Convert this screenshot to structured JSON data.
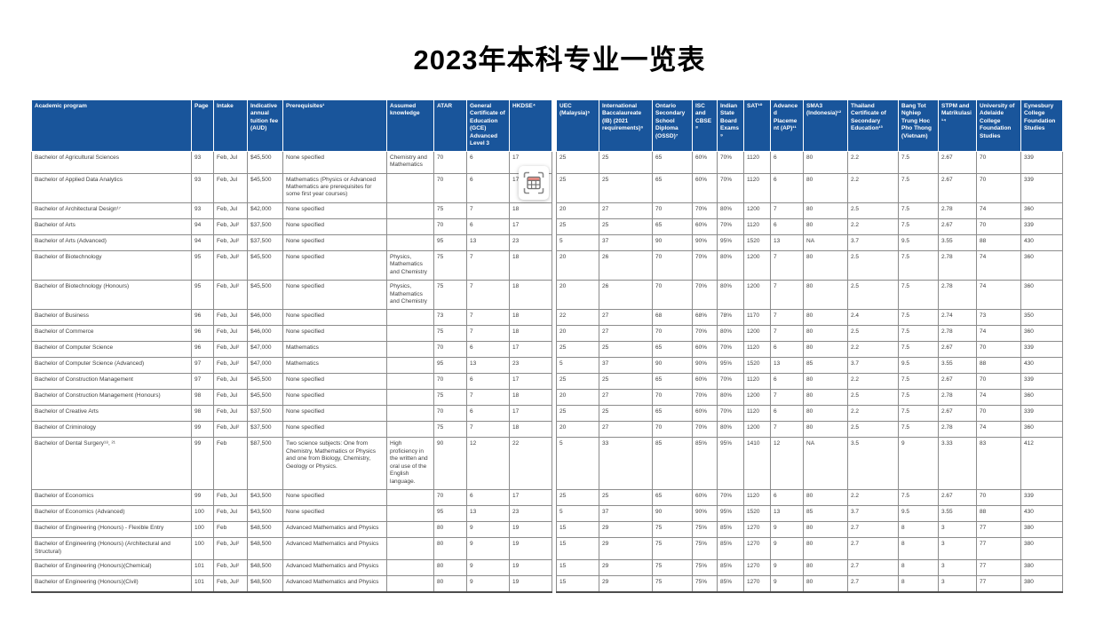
{
  "page_title": "2023年本科专业一览表",
  "colors": {
    "header_bg": "#19559B",
    "header_text": "#FFFFFF",
    "row_border": "#8C8C8C",
    "table_bottom_border": "#4D4D4D",
    "cell_text": "#3D3D3D",
    "capture_icon_accent": "#E2837B",
    "capture_icon_stroke": "#6E6E6E"
  },
  "capture_tool": {
    "label": "capture-table"
  },
  "table": {
    "gap_after_index": 8,
    "columns": [
      "Academic program",
      "Page",
      "Intake",
      "Indicative annual tuition fee (AUD)",
      "Prerequisites¹",
      "Assumed knowledge",
      "ATAR",
      "General Certificate of Education (GCE) Advan­ced Level 3",
      "HKDSE⁴",
      "UEC (Malaysia)⁵",
      "International Baccalaureate (IB) (2021 requirements)⁶",
      "Ontario Secondary School Diploma (OSSD)⁷",
      "ISC and CBSE⁸",
      "Indian State Board Exams⁹",
      "SAT¹⁰",
      "Advanced Placement (AP)¹¹",
      "SMA3 (Indonesia)¹²",
      "Thailand Certificate of Secondary Education¹³",
      "Bang Tot Nghiep Trung Hoc Pho Thong (Vietnam)",
      "STPM and Matrikulasi¹⁴",
      "University of Adelaide College Foundation Studies",
      "Eynesbury College Foundation Studies"
    ],
    "rows": [
      [
        "Bachelor of Agricultural Sciences",
        "93",
        "Feb, Jul",
        "$45,500",
        "None specified",
        "Chemistry and Mathematics",
        "70",
        "6",
        "17",
        "25",
        "25",
        "65",
        "60%",
        "70%",
        "1120",
        "6",
        "80",
        "2.2",
        "7.5",
        "2.67",
        "70",
        "339"
      ],
      [
        "Bachelor of Applied Data Analytics",
        "93",
        "Feb, Jul",
        "$45,500",
        "Mathematics (Physics or Advanced Mathematics are prerequisites for some first year courses)",
        "",
        "70",
        "6",
        "17",
        "25",
        "25",
        "65",
        "60%",
        "70%",
        "1120",
        "6",
        "80",
        "2.2",
        "7.5",
        "2.67",
        "70",
        "339"
      ],
      [
        "Bachelor of Architectural Design¹⁷",
        "93",
        "Feb, Jul",
        "$42,000",
        "None specified",
        "",
        "75",
        "7",
        "18",
        "20",
        "27",
        "70",
        "70%",
        "80%",
        "1200",
        "7",
        "80",
        "2.5",
        "7.5",
        "2.78",
        "74",
        "360"
      ],
      [
        "Bachelor of Arts",
        "94",
        "Feb, Jul²",
        "$37,500",
        "None specified",
        "",
        "70",
        "6",
        "17",
        "25",
        "25",
        "65",
        "60%",
        "70%",
        "1120",
        "6",
        "80",
        "2.2",
        "7.5",
        "2.67",
        "70",
        "339"
      ],
      [
        "Bachelor of Arts (Advanced)",
        "94",
        "Feb, Jul²",
        "$37,500",
        "None specified",
        "",
        "95",
        "13",
        "23",
        "5",
        "37",
        "90",
        "90%",
        "95%",
        "1520",
        "13",
        "NA",
        "3.7",
        "9.5",
        "3.55",
        "88",
        "430"
      ],
      [
        "Bachelor of Biotechnology",
        "95",
        "Feb, Jul²",
        "$45,500",
        "None specified",
        "Physics, Mathematics and Chemistry",
        "75",
        "7",
        "18",
        "20",
        "26",
        "70",
        "70%",
        "80%",
        "1200",
        "7",
        "80",
        "2.5",
        "7.5",
        "2.78",
        "74",
        "360"
      ],
      [
        "Bachelor of Biotechnology (Honours)",
        "95",
        "Feb, Jul²",
        "$45,500",
        "None specified",
        "Physics, Mathematics and Chemistry",
        "75",
        "7",
        "18",
        "20",
        "26",
        "70",
        "70%",
        "80%",
        "1200",
        "7",
        "80",
        "2.5",
        "7.5",
        "2.78",
        "74",
        "360"
      ],
      [
        "Bachelor of Business",
        "96",
        "Feb, Jul",
        "$46,000",
        "None specified",
        "",
        "73",
        "7",
        "18",
        "22",
        "27",
        "68",
        "68%",
        "78%",
        "1170",
        "7",
        "80",
        "2.4",
        "7.5",
        "2.74",
        "73",
        "350"
      ],
      [
        "Bachelor of Commerce",
        "96",
        "Feb, Jul",
        "$46,000",
        "None specified",
        "",
        "75",
        "7",
        "18",
        "20",
        "27",
        "70",
        "70%",
        "80%",
        "1200",
        "7",
        "80",
        "2.5",
        "7.5",
        "2.78",
        "74",
        "360"
      ],
      [
        "Bachelor of Computer Science",
        "96",
        "Feb, Jul²",
        "$47,000",
        "Mathematics",
        "",
        "70",
        "6",
        "17",
        "25",
        "25",
        "65",
        "60%",
        "70%",
        "1120",
        "6",
        "80",
        "2.2",
        "7.5",
        "2.67",
        "70",
        "339"
      ],
      [
        "Bachelor of Computer Science (Advanced)",
        "97",
        "Feb, Jul²",
        "$47,000",
        "Mathematics",
        "",
        "95",
        "13",
        "23",
        "5",
        "37",
        "90",
        "90%",
        "95%",
        "1520",
        "13",
        "85",
        "3.7",
        "9.5",
        "3.55",
        "88",
        "430"
      ],
      [
        "Bachelor of Construction Management",
        "97",
        "Feb, Jul",
        "$45,500",
        "None specified",
        "",
        "70",
        "6",
        "17",
        "25",
        "25",
        "65",
        "60%",
        "70%",
        "1120",
        "6",
        "80",
        "2.2",
        "7.5",
        "2.67",
        "70",
        "339"
      ],
      [
        "Bachelor of Construction Management (Honours)",
        "98",
        "Feb, Jul",
        "$45,500",
        "None specified",
        "",
        "75",
        "7",
        "18",
        "20",
        "27",
        "70",
        "70%",
        "80%",
        "1200",
        "7",
        "80",
        "2.5",
        "7.5",
        "2.78",
        "74",
        "360"
      ],
      [
        "Bachelor of Creative Arts",
        "98",
        "Feb, Jul",
        "$37,500",
        "None specified",
        "",
        "70",
        "6",
        "17",
        "25",
        "25",
        "65",
        "60%",
        "70%",
        "1120",
        "6",
        "80",
        "2.2",
        "7.5",
        "2.67",
        "70",
        "339"
      ],
      [
        "Bachelor of Criminology",
        "99",
        "Feb, Jul²",
        "$37,500",
        "None specified",
        "",
        "75",
        "7",
        "18",
        "20",
        "27",
        "70",
        "70%",
        "80%",
        "1200",
        "7",
        "80",
        "2.5",
        "7.5",
        "2.78",
        "74",
        "360"
      ],
      [
        "Bachelor of Dental Surgery¹⁸, ²¹",
        "99",
        "Feb",
        "$87,500",
        "Two science subjects: One from Chemistry, Mathematics or Physics and one from Biology, Chemistry, Geology or Physics.",
        "High proficiency in the written and oral use of the English language.",
        "90",
        "12",
        "22",
        "5",
        "33",
        "85",
        "85%",
        "95%",
        "1410",
        "12",
        "NA",
        "3.5",
        "9",
        "3.33",
        "83",
        "412"
      ],
      [
        "Bachelor of Economics",
        "99",
        "Feb, Jul",
        "$43,500",
        "None specified",
        "",
        "70",
        "6",
        "17",
        "25",
        "25",
        "65",
        "60%",
        "70%",
        "1120",
        "6",
        "80",
        "2.2",
        "7.5",
        "2.67",
        "70",
        "339"
      ],
      [
        "Bachelor of Economics (Advanced)",
        "100",
        "Feb, Jul",
        "$43,500",
        "None specified",
        "",
        "95",
        "13",
        "23",
        "5",
        "37",
        "90",
        "90%",
        "95%",
        "1520",
        "13",
        "85",
        "3.7",
        "9.5",
        "3.55",
        "88",
        "430"
      ],
      [
        "Bachelor of Engineering (Honours) - Flexible Entry",
        "100",
        "Feb",
        "$48,500",
        "Advanced Mathematics and Physics",
        "",
        "80",
        "9",
        "19",
        "15",
        "29",
        "75",
        "75%",
        "85%",
        "1270",
        "9",
        "80",
        "2.7",
        "8",
        "3",
        "77",
        "380"
      ],
      [
        "Bachelor of Engineering (Honours) (Architectural and Structural)",
        "100",
        "Feb, Jul²",
        "$48,500",
        "Advanced Mathematics and Physics",
        "",
        "80",
        "9",
        "19",
        "15",
        "29",
        "75",
        "75%",
        "85%",
        "1270",
        "9",
        "80",
        "2.7",
        "8",
        "3",
        "77",
        "380"
      ],
      [
        "Bachelor of Engineering (Honours)(Chemical)",
        "101",
        "Feb, Jul²",
        "$48,500",
        "Advanced Mathematics and Physics",
        "",
        "80",
        "9",
        "19",
        "15",
        "29",
        "75",
        "75%",
        "85%",
        "1270",
        "9",
        "80",
        "2.7",
        "8",
        "3",
        "77",
        "380"
      ],
      [
        "Bachelor of Engineering (Honours)(Civil)",
        "101",
        "Feb, Jul²",
        "$48,500",
        "Advanced Mathematics and Physics",
        "",
        "80",
        "9",
        "19",
        "15",
        "29",
        "75",
        "75%",
        "85%",
        "1270",
        "9",
        "80",
        "2.7",
        "8",
        "3",
        "77",
        "380"
      ]
    ]
  }
}
